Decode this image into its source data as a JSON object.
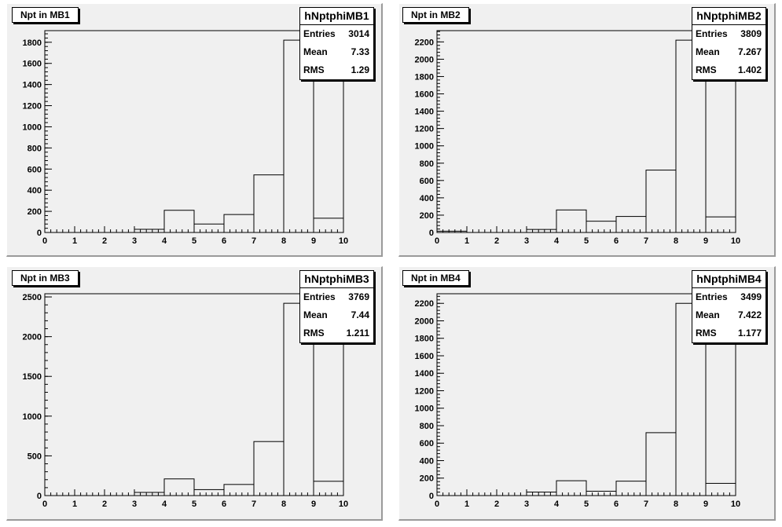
{
  "chart_data": [
    {
      "type": "bar",
      "title": "Npt in MB1",
      "stats": {
        "name": "hNptphiMB1",
        "rows": [
          {
            "label": "Entries",
            "value": "3014"
          },
          {
            "label": "Mean",
            "value": "7.33"
          },
          {
            "label": "RMS",
            "value": "1.29"
          }
        ]
      },
      "x_bin_edges": [
        0,
        1,
        2,
        3,
        4,
        5,
        6,
        7,
        8,
        9,
        10
      ],
      "values": [
        0,
        0,
        0,
        30,
        210,
        80,
        170,
        545,
        1820,
        135
      ],
      "xlim": [
        0,
        10
      ],
      "ylim": [
        0,
        1910
      ],
      "xticks": [
        0,
        1,
        2,
        3,
        4,
        5,
        6,
        7,
        8,
        9,
        10
      ],
      "yticks": [
        0,
        200,
        400,
        600,
        800,
        1000,
        1200,
        1400,
        1600,
        1800
      ],
      "xlabel": "",
      "ylabel": ""
    },
    {
      "type": "bar",
      "title": "Npt in MB2",
      "stats": {
        "name": "hNptphiMB2",
        "rows": [
          {
            "label": "Entries",
            "value": "3809"
          },
          {
            "label": "Mean",
            "value": "7.267"
          },
          {
            "label": "RMS",
            "value": "1.402"
          }
        ]
      },
      "x_bin_edges": [
        0,
        1,
        2,
        3,
        4,
        5,
        6,
        7,
        8,
        9,
        10
      ],
      "values": [
        15,
        0,
        0,
        35,
        260,
        130,
        185,
        720,
        2220,
        180
      ],
      "xlim": [
        0,
        10
      ],
      "ylim": [
        0,
        2330
      ],
      "xticks": [
        0,
        1,
        2,
        3,
        4,
        5,
        6,
        7,
        8,
        9,
        10
      ],
      "yticks": [
        0,
        200,
        400,
        600,
        800,
        1000,
        1200,
        1400,
        1600,
        1800,
        2000,
        2200
      ],
      "xlabel": "",
      "ylabel": ""
    },
    {
      "type": "bar",
      "title": "Npt in MB3",
      "stats": {
        "name": "hNptphiMB3",
        "rows": [
          {
            "label": "Entries",
            "value": "3769"
          },
          {
            "label": "Mean",
            "value": "7.44"
          },
          {
            "label": "RMS",
            "value": "1.211"
          }
        ]
      },
      "x_bin_edges": [
        0,
        1,
        2,
        3,
        4,
        5,
        6,
        7,
        8,
        9,
        10
      ],
      "values": [
        0,
        0,
        0,
        40,
        210,
        75,
        140,
        680,
        2420,
        180
      ],
      "xlim": [
        0,
        10
      ],
      "ylim": [
        0,
        2540
      ],
      "xticks": [
        0,
        1,
        2,
        3,
        4,
        5,
        6,
        7,
        8,
        9,
        10
      ],
      "yticks": [
        0,
        500,
        1000,
        1500,
        2000,
        2500
      ],
      "xlabel": "",
      "ylabel": ""
    },
    {
      "type": "bar",
      "title": "Npt in MB4",
      "stats": {
        "name": "hNptphiMB4",
        "rows": [
          {
            "label": "Entries",
            "value": "3499"
          },
          {
            "label": "Mean",
            "value": "7.422"
          },
          {
            "label": "RMS",
            "value": "1.177"
          }
        ]
      },
      "x_bin_edges": [
        0,
        1,
        2,
        3,
        4,
        5,
        6,
        7,
        8,
        9,
        10
      ],
      "values": [
        0,
        0,
        0,
        40,
        170,
        50,
        165,
        720,
        2200,
        140
      ],
      "xlim": [
        0,
        10
      ],
      "ylim": [
        0,
        2310
      ],
      "xticks": [
        0,
        1,
        2,
        3,
        4,
        5,
        6,
        7,
        8,
        9,
        10
      ],
      "yticks": [
        0,
        200,
        400,
        600,
        800,
        1000,
        1200,
        1400,
        1600,
        1800,
        2000,
        2200
      ],
      "xlabel": "",
      "ylabel": ""
    }
  ],
  "colors": {
    "pad_background": "#f0f0f0",
    "frame": "#000000",
    "box_fill": "#ffffff"
  }
}
